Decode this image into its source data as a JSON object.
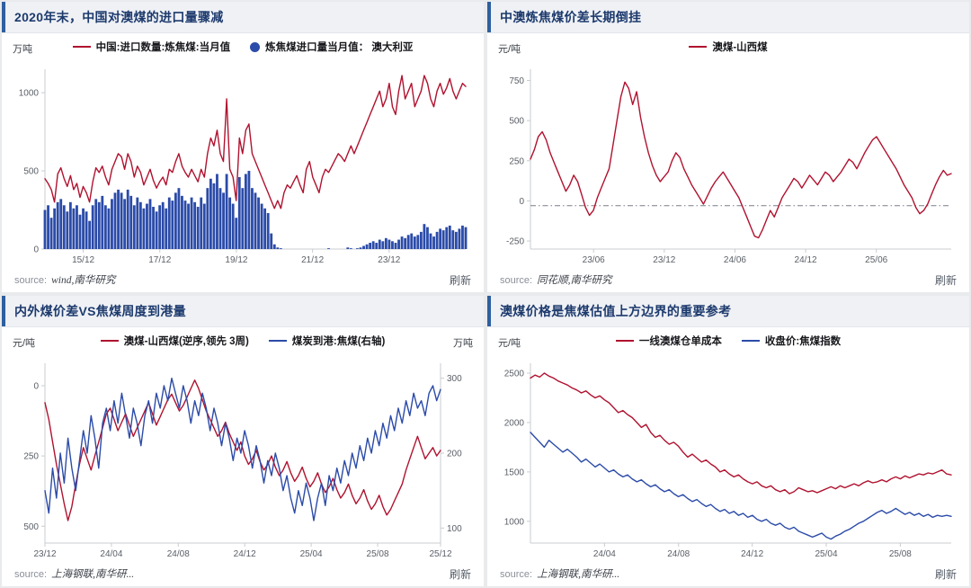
{
  "colors": {
    "red_series": "#b0122f",
    "blue_series": "#2b4ba8",
    "header_text": "#1d3a6d",
    "header_bg": "#eff1f5",
    "accent_bar": "#2e5fa0"
  },
  "panels": [
    {
      "unit_left": "万吨",
      "source_label": "source:",
      "source": "wind,南华研究",
      "refresh": "刷新"
    },
    {
      "unit_left": "元/吨",
      "source_label": "source:",
      "source": "同花顺,南华研究",
      "refresh": "刷新"
    },
    {
      "unit_left": "元/吨",
      "unit_right": "万吨",
      "source_label": "source:",
      "source": "上海钢联,南华研...",
      "refresh": "刷新"
    },
    {
      "unit_left": "元/吨",
      "source_label": "source:",
      "source": "上海钢联,南华研...",
      "refresh": "刷新"
    }
  ],
  "chart_data": [
    {
      "type": "line+bar",
      "title": "2020年末，中国对澳煤的进口量骤减",
      "ylabel": "万吨",
      "axes": {
        "left": {
          "lim": [
            0,
            1150
          ],
          "ticks": [
            0,
            500,
            1000
          ]
        }
      },
      "x": {
        "ticklabels": [
          "15/12",
          "17/12",
          "19/12",
          "21/12",
          "23/12"
        ],
        "tickpos": [
          0.091,
          0.273,
          0.455,
          0.636,
          0.818
        ]
      },
      "series": [
        {
          "name": "炼焦煤进口量当月值： 澳大利亚",
          "type": "bar",
          "axis": "left",
          "color": "#2b4ba8",
          "values": [
            250,
            280,
            200,
            260,
            300,
            320,
            280,
            240,
            300,
            260,
            280,
            220,
            260,
            240,
            180,
            280,
            320,
            300,
            340,
            280,
            260,
            320,
            360,
            380,
            360,
            320,
            380,
            340,
            280,
            330,
            300,
            260,
            290,
            320,
            270,
            240,
            280,
            300,
            260,
            330,
            310,
            360,
            390,
            340,
            310,
            290,
            330,
            300,
            270,
            330,
            290,
            390,
            450,
            420,
            480,
            390,
            360,
            480,
            330,
            290,
            200,
            460,
            390,
            480,
            500,
            390,
            360,
            330,
            290,
            260,
            230,
            100,
            30,
            10,
            5,
            0,
            0,
            0,
            0,
            0,
            0,
            0,
            0,
            0,
            0,
            0,
            0,
            0,
            0,
            5,
            0,
            0,
            0,
            0,
            0,
            10,
            5,
            0,
            5,
            10,
            20,
            30,
            40,
            50,
            40,
            60,
            50,
            70,
            60,
            50,
            40,
            60,
            80,
            70,
            90,
            100,
            80,
            90,
            110,
            160,
            140,
            100,
            80,
            110,
            130,
            120,
            140,
            150,
            120,
            110,
            130,
            150,
            140
          ]
        },
        {
          "name": "中国:进口数量:炼焦煤:当月值",
          "type": "line",
          "axis": "left",
          "color": "#b0122f",
          "values": [
            450,
            420,
            380,
            300,
            480,
            520,
            450,
            400,
            470,
            380,
            420,
            330,
            400,
            360,
            300,
            430,
            520,
            490,
            530,
            460,
            410,
            510,
            560,
            610,
            590,
            510,
            610,
            560,
            460,
            530,
            490,
            410,
            460,
            510,
            440,
            390,
            430,
            460,
            410,
            510,
            490,
            560,
            610,
            530,
            490,
            460,
            510,
            470,
            430,
            510,
            460,
            610,
            710,
            660,
            760,
            610,
            560,
            960,
            510,
            460,
            310,
            710,
            610,
            760,
            800,
            610,
            560,
            510,
            460,
            410,
            360,
            310,
            260,
            310,
            260,
            360,
            410,
            390,
            430,
            470,
            410,
            360,
            510,
            560,
            460,
            410,
            360,
            460,
            510,
            490,
            530,
            570,
            610,
            590,
            560,
            610,
            660,
            610,
            660,
            710,
            760,
            810,
            860,
            910,
            960,
            1010,
            910,
            960,
            1060,
            910,
            860,
            1010,
            1110,
            960,
            1010,
            1060,
            910,
            960,
            1010,
            1110,
            1060,
            960,
            910,
            1010,
            1060,
            990,
            1030,
            1090,
            1010,
            960,
            1010,
            1060,
            1040
          ]
        }
      ],
      "legend_order": [
        1,
        0
      ]
    },
    {
      "type": "line",
      "title": "中澳炼焦煤价差长期倒挂",
      "ylabel": "元/吨",
      "refline": -30,
      "axes": {
        "left": {
          "lim": [
            -300,
            820
          ],
          "ticks": [
            -250,
            0,
            250,
            500,
            750
          ]
        }
      },
      "x": {
        "ticklabels": [
          "23/06",
          "23/12",
          "24/06",
          "24/12",
          "25/06"
        ],
        "tickpos": [
          0.15,
          0.318,
          0.486,
          0.654,
          0.822
        ]
      },
      "series": [
        {
          "name": "澳煤-山西煤",
          "type": "line",
          "axis": "left",
          "color": "#b0122f",
          "values": [
            260,
            320,
            400,
            430,
            380,
            300,
            240,
            180,
            120,
            60,
            100,
            160,
            120,
            40,
            -40,
            -90,
            -60,
            20,
            80,
            140,
            200,
            350,
            500,
            650,
            740,
            700,
            600,
            680,
            520,
            400,
            300,
            220,
            160,
            120,
            150,
            180,
            250,
            300,
            270,
            200,
            150,
            100,
            60,
            20,
            -20,
            30,
            80,
            120,
            150,
            180,
            140,
            100,
            60,
            20,
            -40,
            -100,
            -160,
            -220,
            -230,
            -180,
            -120,
            -60,
            -100,
            -40,
            20,
            60,
            100,
            140,
            120,
            80,
            120,
            160,
            130,
            100,
            140,
            180,
            160,
            120,
            150,
            180,
            220,
            260,
            240,
            200,
            250,
            300,
            340,
            380,
            400,
            360,
            320,
            280,
            240,
            200,
            150,
            100,
            60,
            20,
            -40,
            -80,
            -60,
            -20,
            40,
            100,
            150,
            190,
            160,
            170
          ]
        }
      ]
    },
    {
      "type": "line",
      "title": "内外煤价差VS焦煤周度到港量",
      "ylabel_left": "元/吨",
      "ylabel_right": "万吨",
      "axes": {
        "left": {
          "lim": [
            -80,
            560
          ],
          "ticks": [
            0,
            250,
            500
          ],
          "inverted": true
        },
        "right": {
          "lim": [
            80,
            320
          ],
          "ticks": [
            100,
            200,
            300
          ]
        }
      },
      "x": {
        "ticklabels": [
          "23/12",
          "24/04",
          "24/08",
          "24/12",
          "25/04",
          "25/08",
          "25/12"
        ],
        "tickpos": [
          0,
          0.168,
          0.337,
          0.505,
          0.673,
          0.841,
          1
        ]
      },
      "series": [
        {
          "name": "澳煤-山西煤(逆序,领先 3周)",
          "type": "line",
          "axis": "left",
          "color": "#b0122f",
          "values": [
            60,
            120,
            200,
            280,
            350,
            420,
            480,
            430,
            350,
            280,
            220,
            260,
            300,
            250,
            200,
            150,
            100,
            80,
            120,
            160,
            130,
            100,
            140,
            180,
            150,
            120,
            90,
            60,
            100,
            140,
            110,
            80,
            50,
            30,
            60,
            90,
            70,
            40,
            10,
            -20,
            10,
            50,
            90,
            120,
            150,
            180,
            160,
            130,
            170,
            200,
            230,
            200,
            250,
            280,
            260,
            230,
            270,
            300,
            280,
            250,
            290,
            320,
            300,
            270,
            310,
            340,
            320,
            290,
            330,
            360,
            340,
            310,
            350,
            380,
            360,
            330,
            370,
            400,
            380,
            350,
            390,
            420,
            400,
            370,
            410,
            440,
            420,
            390,
            430,
            460,
            440,
            410,
            380,
            350,
            300,
            260,
            220,
            180,
            220,
            260,
            240,
            220,
            250,
            230
          ]
        },
        {
          "name": "煤炭到港:焦煤(右轴)",
          "type": "line",
          "axis": "right",
          "color": "#2b4ba8",
          "values": [
            150,
            120,
            180,
            140,
            200,
            160,
            220,
            180,
            150,
            190,
            230,
            200,
            250,
            220,
            180,
            240,
            260,
            230,
            270,
            240,
            280,
            250,
            220,
            260,
            240,
            210,
            250,
            270,
            240,
            280,
            260,
            290,
            270,
            300,
            280,
            260,
            290,
            270,
            240,
            270,
            250,
            280,
            260,
            230,
            260,
            240,
            210,
            240,
            220,
            190,
            220,
            200,
            230,
            210,
            180,
            210,
            190,
            160,
            190,
            170,
            200,
            180,
            150,
            170,
            140,
            120,
            150,
            130,
            160,
            140,
            110,
            140,
            160,
            130,
            170,
            150,
            180,
            160,
            190,
            170,
            200,
            180,
            210,
            190,
            220,
            200,
            230,
            210,
            240,
            220,
            250,
            230,
            260,
            240,
            270,
            250,
            280,
            260,
            270,
            250,
            280,
            290,
            270,
            285
          ]
        }
      ]
    },
    {
      "type": "line",
      "title": "澳煤价格是焦煤估值上方边界的重要参考",
      "ylabel": "元/吨",
      "axes": {
        "left": {
          "lim": [
            780,
            2600
          ],
          "ticks": [
            1000,
            1500,
            2000,
            2500
          ]
        }
      },
      "x": {
        "ticklabels": [
          "24/04",
          "24/08",
          "24/12",
          "25/04",
          "25/08"
        ],
        "tickpos": [
          0.176,
          0.352,
          0.527,
          0.703,
          0.879
        ]
      },
      "series": [
        {
          "name": "一线澳煤仓单成本",
          "type": "line",
          "axis": "left",
          "color": "#b0122f",
          "values": [
            2450,
            2480,
            2460,
            2500,
            2470,
            2450,
            2420,
            2400,
            2380,
            2350,
            2330,
            2300,
            2320,
            2280,
            2250,
            2270,
            2230,
            2200,
            2150,
            2100,
            2120,
            2080,
            2050,
            2000,
            1950,
            1980,
            1900,
            1850,
            1870,
            1820,
            1780,
            1800,
            1760,
            1700,
            1650,
            1680,
            1640,
            1600,
            1620,
            1580,
            1550,
            1500,
            1520,
            1480,
            1450,
            1470,
            1430,
            1400,
            1380,
            1400,
            1360,
            1340,
            1360,
            1320,
            1300,
            1320,
            1280,
            1300,
            1340,
            1320,
            1300,
            1310,
            1290,
            1310,
            1330,
            1350,
            1330,
            1360,
            1340,
            1360,
            1380,
            1360,
            1390,
            1410,
            1390,
            1400,
            1420,
            1400,
            1430,
            1450,
            1430,
            1460,
            1440,
            1460,
            1480,
            1470,
            1490,
            1480,
            1500,
            1520,
            1480,
            1470
          ]
        },
        {
          "name": "收盘价:焦煤指数",
          "type": "line",
          "axis": "left",
          "color": "#2b4ba8",
          "values": [
            1900,
            1850,
            1800,
            1750,
            1820,
            1780,
            1740,
            1700,
            1730,
            1690,
            1650,
            1600,
            1630,
            1590,
            1550,
            1580,
            1540,
            1500,
            1520,
            1480,
            1450,
            1470,
            1430,
            1400,
            1420,
            1380,
            1350,
            1370,
            1330,
            1300,
            1320,
            1280,
            1250,
            1270,
            1230,
            1200,
            1220,
            1180,
            1150,
            1170,
            1130,
            1100,
            1120,
            1080,
            1100,
            1060,
            1080,
            1040,
            1060,
            1020,
            1000,
            1020,
            980,
            960,
            980,
            940,
            920,
            940,
            900,
            880,
            860,
            840,
            860,
            880,
            840,
            820,
            850,
            870,
            900,
            920,
            950,
            980,
            1000,
            1030,
            1060,
            1090,
            1110,
            1080,
            1100,
            1130,
            1100,
            1070,
            1090,
            1060,
            1080,
            1050,
            1070,
            1040,
            1060,
            1050,
            1060,
            1050
          ]
        }
      ]
    }
  ]
}
